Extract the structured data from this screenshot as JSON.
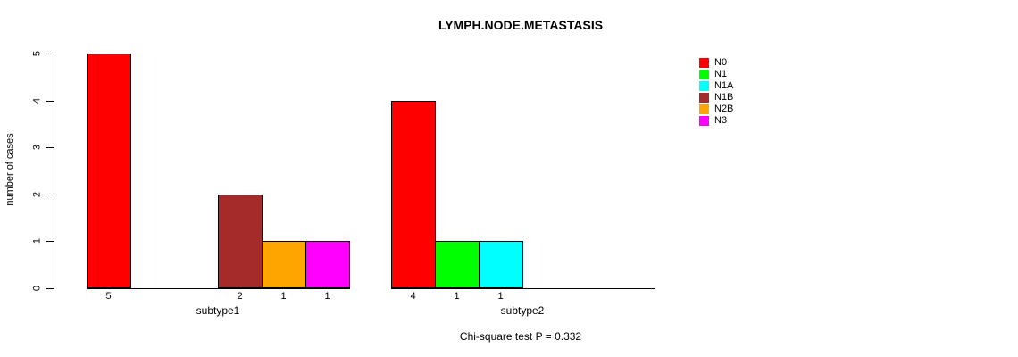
{
  "chart_data": {
    "type": "bar",
    "title": "LYMPH.NODE.METASTASIS",
    "ylabel": "number of cases",
    "xlabel": "",
    "ylim": [
      0,
      5
    ],
    "yticks": [
      0,
      1,
      2,
      3,
      4,
      5
    ],
    "grid": false,
    "legend_position": "right-outside",
    "bar_value_labels": true,
    "categories": [
      "subtype1",
      "subtype2"
    ],
    "series": [
      {
        "name": "N0",
        "color": "#FF0000",
        "values": [
          5,
          4
        ]
      },
      {
        "name": "N1",
        "color": "#00FF00",
        "values": [
          0,
          1
        ]
      },
      {
        "name": "N1A",
        "color": "#00FFFF",
        "values": [
          0,
          1
        ]
      },
      {
        "name": "N1B",
        "color": "#A52A2A",
        "values": [
          2,
          0
        ]
      },
      {
        "name": "N2B",
        "color": "#FFA500",
        "values": [
          1,
          0
        ]
      },
      {
        "name": "N3",
        "color": "#FF00FF",
        "values": [
          1,
          0
        ]
      }
    ],
    "annotation": "Chi-square test P = 0.332",
    "axis_color": "#000000",
    "bar_border_color": "#000000"
  }
}
